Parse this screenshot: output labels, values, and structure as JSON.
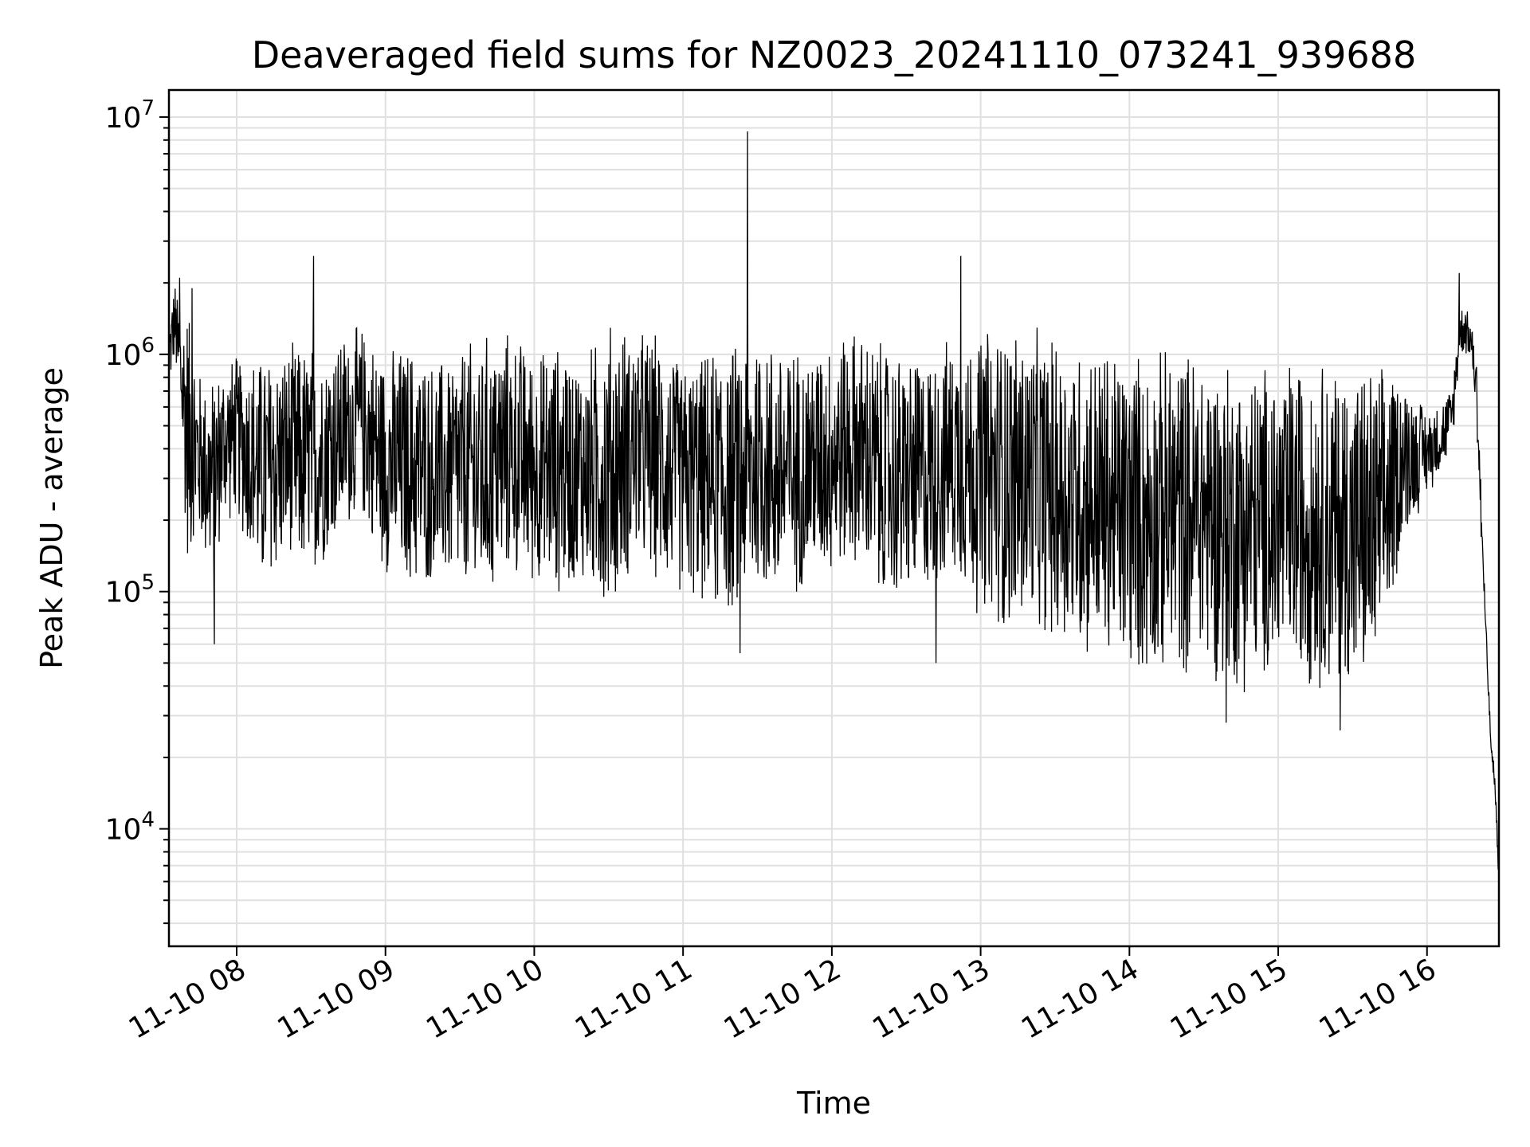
{
  "chart_data": {
    "type": "line",
    "title": "Deaveraged field sums for NZ0023_20241110_073241_939688",
    "xlabel": "Time",
    "ylabel": "Peak ADU - average",
    "yscale": "log",
    "ylim": [
      3200,
      13000000
    ],
    "xlim": [
      "2024-11-10 07:32:41",
      "2024-11-10 16:29:00"
    ],
    "grid": true,
    "legend": "none",
    "line_color": "#000000",
    "x_tick_labels": [
      "11-10 08",
      "11-10 09",
      "11-10 10",
      "11-10 11",
      "11-10 12",
      "11-10 13",
      "11-10 14",
      "11-10 15",
      "11-10 16"
    ],
    "x_tick_values": [
      "2024-11-10 08:00",
      "2024-11-10 09:00",
      "2024-11-10 10:00",
      "2024-11-10 11:00",
      "2024-11-10 12:00",
      "2024-11-10 13:00",
      "2024-11-10 14:00",
      "2024-11-10 15:00",
      "2024-11-10 16:00"
    ],
    "y_tick_labels": [
      {
        "base": "10",
        "exp": "4",
        "value": 10000
      },
      {
        "base": "10",
        "exp": "5",
        "value": 100000
      },
      {
        "base": "10",
        "exp": "6",
        "value": 1000000
      },
      {
        "base": "10",
        "exp": "7",
        "value": 10000000
      }
    ],
    "series": [
      {
        "x": [
          "07:33",
          "07:35",
          "07:37",
          "07:40",
          "07:45",
          "07:50",
          "07:55",
          "08:00",
          "08:10",
          "08:20",
          "08:30",
          "08:40",
          "08:50",
          "09:00",
          "09:10",
          "09:20",
          "09:30",
          "09:40",
          "09:50",
          "10:00",
          "10:10",
          "10:20",
          "10:30",
          "10:40",
          "10:50",
          "11:00",
          "11:10",
          "11:20",
          "11:30",
          "11:40",
          "11:50",
          "12:00",
          "12:10",
          "12:20",
          "12:30",
          "12:40",
          "12:50",
          "13:00",
          "13:10",
          "13:20",
          "13:30",
          "13:40",
          "13:50",
          "14:00",
          "14:10",
          "14:20",
          "14:30",
          "14:40",
          "14:50",
          "15:00",
          "15:10",
          "15:20",
          "15:30",
          "15:40",
          "15:50",
          "16:00",
          "16:05",
          "16:10",
          "16:13",
          "16:15",
          "16:18",
          "16:20",
          "16:22",
          "16:24",
          "16:26",
          "16:27",
          "16:28",
          "16:29"
        ],
        "y_high": [
          1500000,
          2100000,
          1700000,
          1900000,
          900000,
          850000,
          1000000,
          1050000,
          1100000,
          1150000,
          1200000,
          1300000,
          1400000,
          1100000,
          1200000,
          1000000,
          1150000,
          1300000,
          1350000,
          1100000,
          1200000,
          1050000,
          1500000,
          1400000,
          1300000,
          1000000,
          1100000,
          1200000,
          1400000,
          1200000,
          1150000,
          1300000,
          1400000,
          1200000,
          1100000,
          1100000,
          1300000,
          1400000,
          1500000,
          1350000,
          1300000,
          1250000,
          1200000,
          1150000,
          1100000,
          1200000,
          1100000,
          1050000,
          1000000,
          1000000,
          1100000,
          1050000,
          1000000,
          950000,
          900000,
          600000,
          650000,
          750000,
          1500000,
          1800000,
          1400000,
          1000000,
          300000,
          80000,
          25000,
          22000,
          14000,
          7500
        ],
        "y_low": [
          700000,
          900000,
          500000,
          120000,
          150000,
          100000,
          180000,
          200000,
          90000,
          120000,
          100000,
          150000,
          200000,
          110000,
          95000,
          100000,
          90000,
          80000,
          110000,
          100000,
          90000,
          100000,
          70000,
          120000,
          100000,
          90000,
          80000,
          70000,
          90000,
          80000,
          100000,
          110000,
          120000,
          80000,
          80000,
          90000,
          110000,
          70000,
          60000,
          65000,
          55000,
          50000,
          45000,
          40000,
          38000,
          40000,
          42000,
          35000,
          36000,
          40000,
          38000,
          34000,
          33000,
          35000,
          150000,
          250000,
          300000,
          380000,
          900000,
          1000000,
          900000,
          500000,
          120000,
          40000,
          16000,
          14000,
          9000,
          4500
        ],
        "spikes": [
          {
            "x": "07:34",
            "y": 1500000
          },
          {
            "x": "07:37",
            "y": 2100000
          },
          {
            "x": "07:42",
            "y": 1900000
          },
          {
            "x": "07:51",
            "y": 60000
          },
          {
            "x": "08:31",
            "y": 2600000
          },
          {
            "x": "11:26",
            "y": 8700000
          },
          {
            "x": "11:23",
            "y": 55000
          },
          {
            "x": "12:42",
            "y": 50000
          },
          {
            "x": "12:52",
            "y": 2600000
          },
          {
            "x": "14:39",
            "y": 28000
          },
          {
            "x": "15:25",
            "y": 26000
          },
          {
            "x": "16:13",
            "y": 2200000
          }
        ]
      }
    ]
  }
}
